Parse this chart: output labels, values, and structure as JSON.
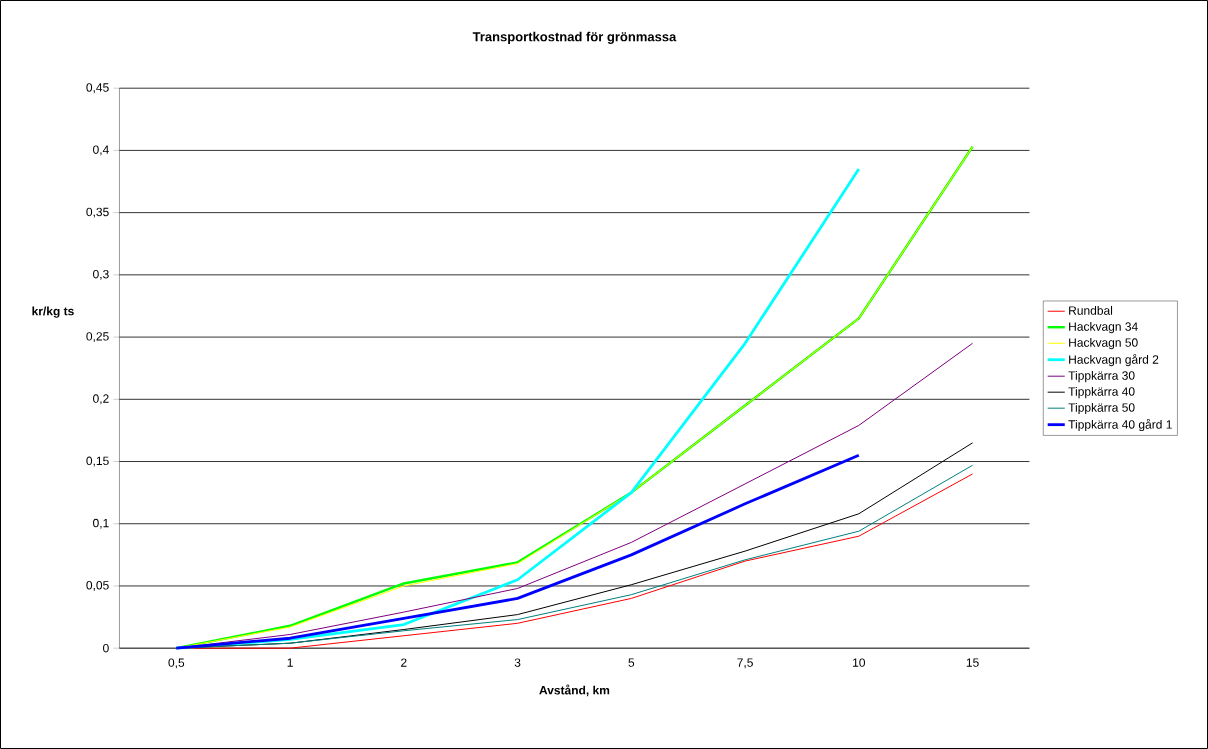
{
  "chart_data": {
    "type": "line",
    "title": "Transportkostnad för grönmassa",
    "xlabel": "Avstånd, km",
    "ylabel": "kr/kg ts",
    "categories": [
      "0,5",
      "1",
      "2",
      "3",
      "5",
      "7,5",
      "10",
      "15"
    ],
    "ylim": [
      0,
      0.45
    ],
    "yticks": [
      {
        "value": 0,
        "label": "0"
      },
      {
        "value": 0.05,
        "label": "0,05"
      },
      {
        "value": 0.1,
        "label": "0,1"
      },
      {
        "value": 0.15,
        "label": "0,15"
      },
      {
        "value": 0.2,
        "label": "0,2"
      },
      {
        "value": 0.25,
        "label": "0,25"
      },
      {
        "value": 0.3,
        "label": "0,3"
      },
      {
        "value": 0.35,
        "label": "0,35"
      },
      {
        "value": 0.4,
        "label": "0,4"
      },
      {
        "value": 0.45,
        "label": "0,45"
      }
    ],
    "grid": "y",
    "legend": "right",
    "marker": "none",
    "series": [
      {
        "name": "Rundbal",
        "color": "#ff0000",
        "values": [
          0,
          0,
          0.01,
          0.02,
          0.04,
          0.07,
          0.09,
          0.14
        ]
      },
      {
        "name": "Hackvagn 34",
        "color": "#00ff00",
        "values": [
          0,
          0.018,
          0.052,
          0.069,
          0.125,
          0.195,
          0.265,
          0.403
        ]
      },
      {
        "name": "Hackvagn 50",
        "color": "#ffff00",
        "values": [
          0,
          0.017,
          0.05,
          0.068,
          0.125,
          0.195,
          0.265,
          0.403
        ]
      },
      {
        "name": "Hackvagn gård 2",
        "color": "#00ffff",
        "values": [
          0,
          0.007,
          0.019,
          0.055,
          0.125,
          0.245,
          0.385,
          null
        ]
      },
      {
        "name": "Tippkärra 30",
        "color": "#800080",
        "values": [
          0,
          0.011,
          0.029,
          0.048,
          0.085,
          0.132,
          0.179,
          0.245
        ]
      },
      {
        "name": "Tippkärra 40",
        "color": "#000000",
        "values": [
          0,
          0.004,
          0.015,
          0.027,
          0.051,
          0.078,
          0.108,
          0.165
        ]
      },
      {
        "name": "Tippkärra 50",
        "color": "#008080",
        "values": [
          0,
          0.004,
          0.014,
          0.023,
          0.043,
          0.071,
          0.094,
          0.147
        ]
      },
      {
        "name": "Tippkärra 40 gård 1",
        "color": "#0000ff",
        "values": [
          0,
          0.008,
          0.024,
          0.04,
          0.075,
          0.116,
          0.155,
          null
        ]
      }
    ]
  }
}
